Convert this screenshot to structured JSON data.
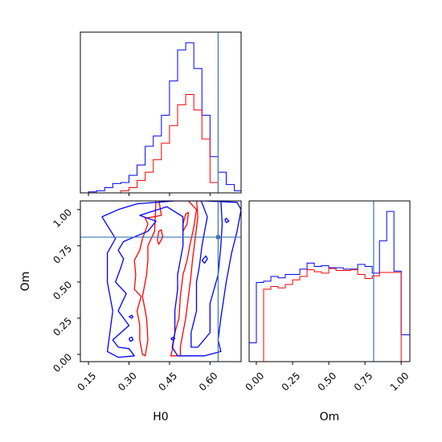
{
  "chart_data": {
    "type": "corner",
    "parameters": [
      "H0",
      "Om"
    ],
    "truth": {
      "H0": 0.63,
      "Om": 0.81
    },
    "truth_color": "#3b75af",
    "series": [
      {
        "color": "#0000ff"
      },
      {
        "color": "#ff0000"
      }
    ],
    "xlabel_h0": "H0",
    "xlabel_om": "Om",
    "ylabel_om": "Om",
    "h0_range": [
      0.12,
      0.715
    ],
    "om_range": [
      -0.05,
      1.06
    ],
    "h0_ticks": [
      "0.15",
      "0.30",
      "0.45",
      "0.60"
    ],
    "h0_tick_values": [
      0.15,
      0.3,
      0.45,
      0.6
    ],
    "om_ticks": [
      "0.00",
      "0.25",
      "0.50",
      "0.75",
      "1.00"
    ],
    "om_tick_values": [
      0.0,
      0.25,
      0.5,
      0.75,
      1.0
    ],
    "hist_h0": {
      "edges": [
        0.12,
        0.15,
        0.18,
        0.21,
        0.24,
        0.27,
        0.3,
        0.33,
        0.36,
        0.39,
        0.42,
        0.45,
        0.48,
        0.51,
        0.54,
        0.57,
        0.6,
        0.63,
        0.66,
        0.69,
        0.715
      ],
      "blue": [
        0,
        1,
        2,
        5,
        9,
        10,
        17,
        27,
        45,
        55,
        75,
        108,
        138,
        145,
        120,
        75,
        35,
        20,
        8,
        2
      ],
      "red": [
        0,
        0,
        0,
        0,
        0,
        2,
        5,
        12,
        20,
        32,
        48,
        65,
        85,
        95,
        80,
        52,
        10,
        0,
        0,
        0
      ]
    },
    "hist_om": {
      "edges": [
        -0.05,
        0.0,
        0.05,
        0.1,
        0.15,
        0.2,
        0.25,
        0.3,
        0.35,
        0.4,
        0.45,
        0.5,
        0.55,
        0.6,
        0.65,
        0.7,
        0.75,
        0.8,
        0.85,
        0.9,
        0.95,
        1.0,
        1.06
      ],
      "blue": [
        28,
        118,
        120,
        127,
        125,
        130,
        130,
        138,
        147,
        142,
        143,
        140,
        140,
        138,
        138,
        145,
        142,
        132,
        180,
        224,
        135,
        40
      ],
      "red": [
        0,
        0,
        108,
        112,
        110,
        115,
        122,
        127,
        137,
        134,
        132,
        139,
        136,
        136,
        137,
        130,
        124,
        128,
        133,
        133,
        133,
        0
      ]
    },
    "contours": {
      "blue": [
        [
          [
            0.33,
            1.04
          ],
          [
            0.47,
            1.06
          ],
          [
            0.58,
            1.06
          ],
          [
            0.7,
            1.05
          ],
          [
            0.715,
            1.0
          ],
          [
            0.7,
            0.85
          ],
          [
            0.68,
            0.7
          ],
          [
            0.66,
            0.5
          ],
          [
            0.64,
            0.25
          ],
          [
            0.63,
            0.1
          ],
          [
            0.64,
            0.02
          ],
          [
            0.58,
            -0.01
          ],
          [
            0.48,
            -0.01
          ],
          [
            0.46,
            0.05
          ],
          [
            0.47,
            0.15
          ],
          [
            0.47,
            0.3
          ],
          [
            0.48,
            0.45
          ],
          [
            0.48,
            0.55
          ],
          [
            0.5,
            0.75
          ],
          [
            0.5,
            0.95
          ],
          [
            0.44,
            1.02
          ],
          [
            0.34,
            0.96
          ],
          [
            0.4,
            0.92
          ],
          [
            0.37,
            0.85
          ],
          [
            0.28,
            0.78
          ],
          [
            0.26,
            0.72
          ],
          [
            0.28,
            0.66
          ],
          [
            0.27,
            0.6
          ],
          [
            0.25,
            0.5
          ],
          [
            0.29,
            0.42
          ],
          [
            0.26,
            0.3
          ],
          [
            0.3,
            0.2
          ],
          [
            0.24,
            0.1
          ],
          [
            0.26,
            0.05
          ],
          [
            0.3,
            0.04
          ],
          [
            0.32,
            -0.01
          ],
          [
            0.26,
            -0.02
          ],
          [
            0.22,
            0.02
          ],
          [
            0.24,
            0.3
          ],
          [
            0.22,
            0.5
          ],
          [
            0.22,
            0.7
          ],
          [
            0.25,
            0.8
          ],
          [
            0.2,
            0.95
          ],
          [
            0.26,
            1.0
          ],
          [
            0.33,
            1.04
          ]
        ],
        [
          [
            0.565,
            1.07
          ],
          [
            0.59,
            0.95
          ],
          [
            0.58,
            0.85
          ],
          [
            0.57,
            0.75
          ],
          [
            0.56,
            0.6
          ],
          [
            0.55,
            0.5
          ],
          [
            0.55,
            0.3
          ],
          [
            0.53,
            0.15
          ],
          [
            0.53,
            0.05
          ],
          [
            0.555,
            0.05
          ],
          [
            0.6,
            0.15
          ],
          [
            0.6,
            0.35
          ],
          [
            0.63,
            0.55
          ],
          [
            0.64,
            0.75
          ],
          [
            0.645,
            0.9
          ],
          [
            0.64,
            1.07
          ]
        ],
        [
          [
            0.3,
            0.26
          ],
          [
            0.31,
            0.27
          ],
          [
            0.315,
            0.26
          ],
          [
            0.31,
            0.25
          ],
          [
            0.3,
            0.26
          ]
        ],
        [
          [
            0.3,
            0.11
          ],
          [
            0.31,
            0.12
          ],
          [
            0.315,
            0.1
          ],
          [
            0.305,
            0.09
          ],
          [
            0.3,
            0.11
          ]
        ],
        [
          [
            0.57,
            0.65
          ],
          [
            0.585,
            0.68
          ],
          [
            0.59,
            0.66
          ],
          [
            0.58,
            0.63
          ],
          [
            0.57,
            0.65
          ]
        ],
        [
          [
            0.655,
            0.93
          ],
          [
            0.66,
            0.94
          ],
          [
            0.67,
            0.92
          ],
          [
            0.66,
            0.91
          ],
          [
            0.655,
            0.93
          ]
        ],
        [
          [
            0.455,
            0.11
          ],
          [
            0.465,
            0.12
          ],
          [
            0.47,
            0.11
          ],
          [
            0.46,
            0.1
          ],
          [
            0.455,
            0.11
          ]
        ]
      ],
      "red": [
        [
          [
            0.41,
            1.07
          ],
          [
            0.42,
            0.96
          ],
          [
            0.36,
            0.94
          ],
          [
            0.37,
            0.9
          ],
          [
            0.35,
            0.8
          ],
          [
            0.34,
            0.72
          ],
          [
            0.32,
            0.65
          ],
          [
            0.325,
            0.55
          ],
          [
            0.32,
            0.45
          ],
          [
            0.345,
            0.4
          ],
          [
            0.33,
            0.3
          ],
          [
            0.34,
            0.2
          ],
          [
            0.34,
            0.1
          ],
          [
            0.35,
            0.0
          ],
          [
            0.36,
            -0.01
          ],
          [
            0.37,
            0.1
          ],
          [
            0.365,
            0.25
          ],
          [
            0.35,
            0.4
          ],
          [
            0.365,
            0.55
          ],
          [
            0.37,
            0.65
          ],
          [
            0.37,
            0.75
          ],
          [
            0.395,
            0.85
          ],
          [
            0.4,
            1.07
          ]
        ],
        [
          [
            0.515,
            1.07
          ],
          [
            0.55,
            1.0
          ],
          [
            0.54,
            0.88
          ],
          [
            0.525,
            0.75
          ],
          [
            0.515,
            0.65
          ],
          [
            0.5,
            0.55
          ],
          [
            0.49,
            0.4
          ],
          [
            0.485,
            0.25
          ],
          [
            0.47,
            0.15
          ],
          [
            0.46,
            0.03
          ],
          [
            0.455,
            -0.01
          ],
          [
            0.49,
            -0.01
          ],
          [
            0.49,
            0.05
          ],
          [
            0.5,
            0.15
          ],
          [
            0.51,
            0.25
          ],
          [
            0.52,
            0.4
          ],
          [
            0.53,
            0.55
          ],
          [
            0.535,
            0.65
          ],
          [
            0.545,
            0.8
          ],
          [
            0.555,
            0.95
          ],
          [
            0.55,
            1.07
          ]
        ],
        [
          [
            0.405,
            0.79
          ],
          [
            0.41,
            0.85
          ],
          [
            0.42,
            0.86
          ],
          [
            0.425,
            0.81
          ],
          [
            0.41,
            0.76
          ],
          [
            0.405,
            0.79
          ]
        ],
        [
          [
            0.5,
            0.9
          ],
          [
            0.51,
            0.97
          ],
          [
            0.52,
            0.98
          ],
          [
            0.515,
            0.9
          ],
          [
            0.5,
            0.85
          ],
          [
            0.5,
            0.9
          ]
        ]
      ]
    }
  }
}
